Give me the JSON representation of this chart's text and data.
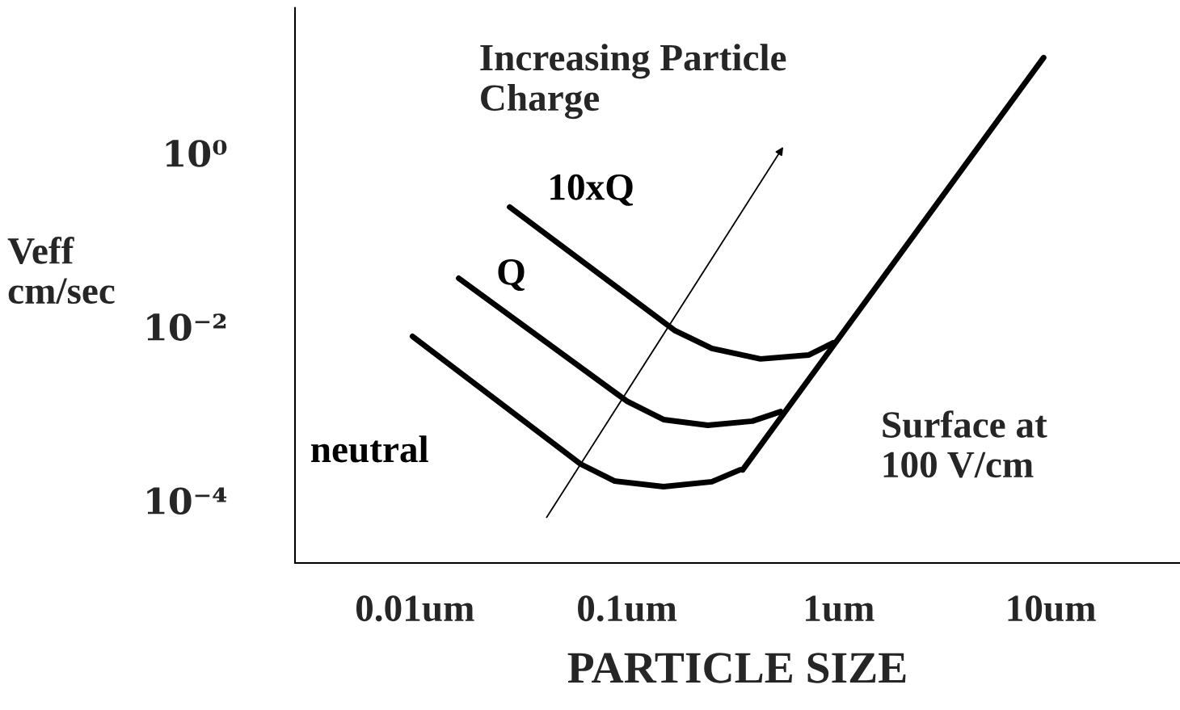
{
  "chart_data": {
    "type": "line",
    "xlabel": "PARTICLE SIZE",
    "ylabel": "Veff\ncm/sec",
    "log": "xy",
    "grid": false,
    "marker": "none",
    "line_style": "solid",
    "xlim": [
      0.00272,
      40.7
    ],
    "ylim": [
      1.9e-05,
      46.8
    ],
    "xticks": [
      {
        "value": 0.01,
        "label": "0.01um"
      },
      {
        "value": 0.1,
        "label": "0.1um"
      },
      {
        "value": 1,
        "label": "1um"
      },
      {
        "value": 10,
        "label": "10um"
      }
    ],
    "yticks": [
      {
        "value": 1,
        "label": "10⁰"
      },
      {
        "value": 0.01,
        "label": "10⁻²"
      },
      {
        "value": 0.0001,
        "label": "10⁻⁴"
      }
    ],
    "series": [
      {
        "name": "neutral",
        "color": "#000000",
        "x": [
          0.00975,
          0.0605,
          0.0877,
          0.149,
          0.252,
          0.342
        ],
        "values": [
          0.00773,
          0.000262,
          0.000167,
          0.000144,
          0.000164,
          0.000225
        ]
      },
      {
        "name": "Q",
        "color": "#000000",
        "x": [
          0.0161,
          0.1,
          0.149,
          0.241,
          0.391,
          0.531
        ],
        "values": [
          0.0361,
          0.00139,
          0.000851,
          0.000733,
          0.000817,
          0.00105
        ]
      },
      {
        "name": "10xQ",
        "color": "#000000",
        "x": [
          0.028,
          0.169,
          0.252,
          0.427,
          0.723,
          0.94
        ],
        "values": [
          0.238,
          0.00897,
          0.00561,
          0.00425,
          0.00472,
          0.00652
        ]
      },
      {
        "color": "#000000",
        "x": [
          0.352,
          9.25
        ],
        "values": [
          0.000225,
          12.5
        ]
      }
    ],
    "annotations": [
      "Increasing Particle\nCharge",
      "Surface at\n100 V/cm"
    ]
  }
}
